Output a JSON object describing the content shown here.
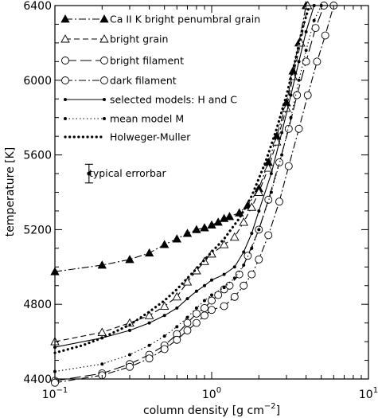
{
  "chart_data": {
    "type": "line",
    "title": "",
    "xlabel": "column density [g cm",
    "xlabel_sup": "−2",
    "xlabel_close": "]",
    "ylabel": "temperature [K]",
    "xscale": "log",
    "xlim": [
      0.1,
      10
    ],
    "ylim": [
      4400,
      6400
    ],
    "grid": false,
    "legend_position": "top-left",
    "x_tick_labels": [
      {
        "value": 0.1,
        "base": "10",
        "exp": "−1"
      },
      {
        "value": 1,
        "base": "10",
        "exp": "0"
      },
      {
        "value": 10,
        "base": "10",
        "exp": "1"
      }
    ],
    "y_ticks": [
      4400,
      4800,
      5200,
      5600,
      6000,
      6400
    ],
    "errorbar_label": "typical errorbar",
    "errorbar": {
      "x": 0.165,
      "y": 5500,
      "yerr": 50
    },
    "series": [
      {
        "name": "Ca II K bright penumbral grain",
        "style": "dashdot",
        "marker": "filled-triangle",
        "x": [
          0.1,
          0.2,
          0.3,
          0.4,
          0.5,
          0.6,
          0.7,
          0.8,
          0.9,
          1.0,
          1.1,
          1.2,
          1.3,
          1.5,
          1.7,
          2.0,
          2.3,
          2.6,
          3.0,
          3.3,
          3.6,
          4.0
        ],
        "y": [
          4975,
          5010,
          5040,
          5075,
          5120,
          5150,
          5180,
          5200,
          5210,
          5225,
          5240,
          5260,
          5270,
          5290,
          5330,
          5420,
          5560,
          5700,
          5880,
          6050,
          6200,
          6400
        ]
      },
      {
        "name": "bright grain",
        "style": "dashed",
        "marker": "open-triangle",
        "x": [
          0.1,
          0.2,
          0.3,
          0.4,
          0.5,
          0.6,
          0.7,
          0.8,
          0.9,
          1.0,
          1.2,
          1.4,
          1.6,
          1.8,
          2.0,
          2.3,
          2.6,
          3.0,
          3.3,
          3.7,
          4.1
        ],
        "y": [
          4600,
          4650,
          4700,
          4740,
          4790,
          4840,
          4920,
          4980,
          5030,
          5070,
          5120,
          5160,
          5240,
          5320,
          5400,
          5530,
          5670,
          5850,
          6020,
          6200,
          6400
        ]
      },
      {
        "name": "bright filament",
        "style": "longdash",
        "marker": "open-circle",
        "x": [
          0.1,
          0.2,
          0.3,
          0.4,
          0.5,
          0.6,
          0.7,
          0.8,
          0.9,
          1.0,
          1.1,
          1.2,
          1.3,
          1.5,
          1.7,
          2.0,
          2.3,
          2.7,
          3.1,
          3.5,
          4.0,
          4.6,
          5.2
        ],
        "y": [
          4390,
          4430,
          4480,
          4530,
          4580,
          4640,
          4700,
          4750,
          4780,
          4820,
          4850,
          4880,
          4900,
          4960,
          5060,
          5200,
          5360,
          5560,
          5740,
          5920,
          6100,
          6280,
          6400
        ]
      },
      {
        "name": "dark filament",
        "style": "dashdot",
        "marker": "open-circle",
        "x": [
          0.1,
          0.2,
          0.3,
          0.4,
          0.5,
          0.6,
          0.7,
          0.8,
          0.9,
          1.0,
          1.2,
          1.4,
          1.6,
          1.8,
          2.0,
          2.3,
          2.7,
          3.1,
          3.6,
          4.1,
          4.7,
          5.3,
          6.0
        ],
        "y": [
          4380,
          4420,
          4465,
          4510,
          4560,
          4610,
          4660,
          4700,
          4740,
          4770,
          4790,
          4840,
          4900,
          4960,
          5040,
          5170,
          5350,
          5540,
          5740,
          5920,
          6100,
          6240,
          6400
        ]
      },
      {
        "name": "selected models: H and C",
        "style": "solid",
        "marker": "dot",
        "x": [
          0.1,
          0.2,
          0.3,
          0.4,
          0.5,
          0.6,
          0.7,
          0.8,
          0.9,
          1.0,
          1.2,
          1.4,
          1.6,
          1.8,
          2.0,
          2.4,
          2.8,
          3.2,
          3.6,
          4.0,
          4.5
        ],
        "y": [
          4570,
          4620,
          4660,
          4700,
          4740,
          4780,
          4830,
          4870,
          4900,
          4930,
          4960,
          5000,
          5080,
          5180,
          5300,
          5500,
          5720,
          5920,
          6100,
          6260,
          6400
        ]
      },
      {
        "name": "mean model M",
        "style": "dotted",
        "marker": "dot",
        "x": [
          0.1,
          0.2,
          0.3,
          0.4,
          0.5,
          0.6,
          0.7,
          0.8,
          0.9,
          1.0,
          1.2,
          1.4,
          1.6,
          1.8,
          2.0,
          2.4,
          2.8,
          3.2,
          3.6,
          4.0,
          4.5,
          5.0
        ],
        "y": [
          4440,
          4480,
          4530,
          4580,
          4630,
          4680,
          4730,
          4780,
          4820,
          4850,
          4890,
          4940,
          5010,
          5100,
          5200,
          5400,
          5600,
          5800,
          6000,
          6160,
          6320,
          6400
        ]
      },
      {
        "name": "Holweger-Muller",
        "style": "bold-dotted",
        "marker": "none",
        "x": [
          0.1,
          0.15,
          0.2,
          0.3,
          0.4,
          0.5,
          0.6,
          0.7,
          0.8,
          1.0,
          1.2,
          1.5,
          1.8,
          2.2,
          2.6,
          3.0,
          3.4,
          3.8,
          4.2
        ],
        "y": [
          4540,
          4580,
          4620,
          4690,
          4760,
          4820,
          4880,
          4940,
          4990,
          5080,
          5150,
          5260,
          5380,
          5560,
          5740,
          5920,
          6100,
          6280,
          6400
        ]
      }
    ]
  }
}
